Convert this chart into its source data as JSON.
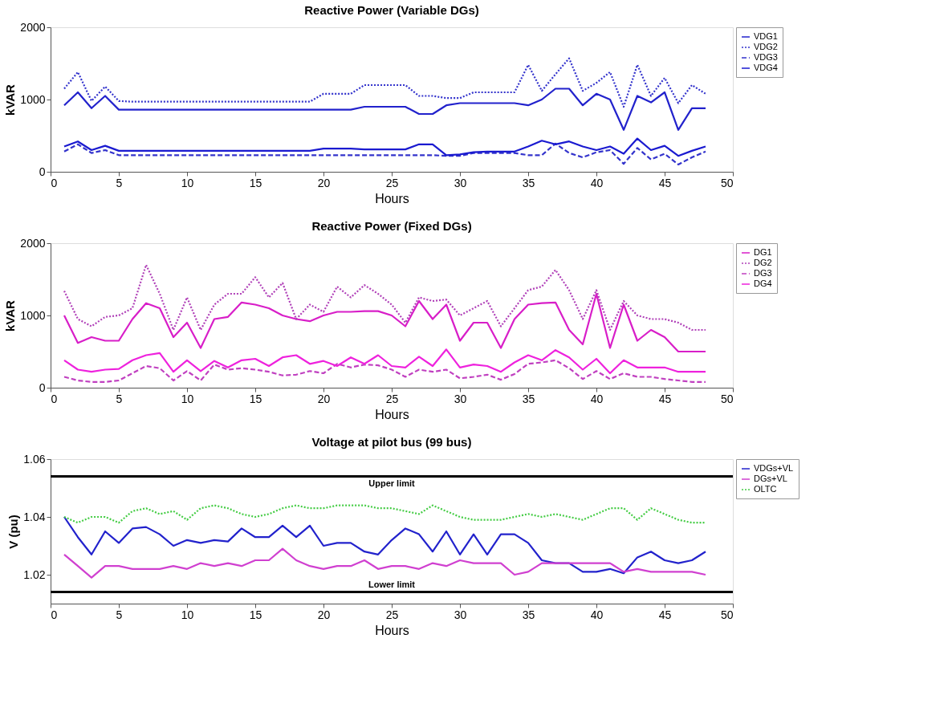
{
  "chart_data": [
    {
      "type": "line",
      "title": "Reactive Power (Variable DGs)",
      "xlabel": "Hours",
      "ylabel": "kVAR",
      "xlim": [
        0,
        50
      ],
      "xticks": [
        0,
        5,
        10,
        15,
        20,
        25,
        30,
        35,
        40,
        45,
        50
      ],
      "ylim": [
        0,
        2000
      ],
      "yticks": [
        0,
        1000,
        2000
      ],
      "grid": false,
      "legend": "top right",
      "marker": "none",
      "x": [
        1,
        2,
        3,
        4,
        5,
        6,
        7,
        8,
        9,
        10,
        11,
        12,
        13,
        14,
        15,
        16,
        17,
        18,
        19,
        20,
        21,
        22,
        23,
        24,
        25,
        26,
        27,
        28,
        29,
        30,
        31,
        32,
        33,
        34,
        35,
        36,
        37,
        38,
        39,
        40,
        41,
        42,
        43,
        44,
        45,
        46,
        47,
        48
      ],
      "series": [
        {
          "name": "VDG1",
          "color": "#2222cc",
          "line_style": "solid",
          "values": [
            920,
            1100,
            880,
            1050,
            860,
            860,
            860,
            860,
            860,
            860,
            860,
            860,
            860,
            860,
            860,
            860,
            860,
            860,
            860,
            860,
            860,
            860,
            900,
            900,
            900,
            900,
            800,
            800,
            920,
            950,
            950,
            950,
            950,
            950,
            920,
            1000,
            1150,
            1150,
            920,
            1080,
            1000,
            580,
            1050,
            960,
            1100,
            580,
            880,
            880
          ]
        },
        {
          "name": "VDG2",
          "color": "#3333cc",
          "line_style": "dotted",
          "values": [
            1150,
            1380,
            980,
            1180,
            980,
            970,
            970,
            970,
            970,
            970,
            970,
            970,
            970,
            970,
            970,
            970,
            970,
            970,
            970,
            1080,
            1080,
            1080,
            1200,
            1200,
            1200,
            1200,
            1050,
            1050,
            1020,
            1020,
            1100,
            1100,
            1100,
            1100,
            1480,
            1120,
            1350,
            1570,
            1120,
            1230,
            1380,
            900,
            1480,
            1050,
            1300,
            950,
            1200,
            1080
          ]
        },
        {
          "name": "VDG3",
          "color": "#3333cc",
          "line_style": "dashed",
          "values": [
            280,
            380,
            260,
            300,
            230,
            230,
            230,
            230,
            230,
            230,
            230,
            230,
            230,
            230,
            230,
            230,
            230,
            230,
            230,
            230,
            230,
            230,
            230,
            230,
            230,
            230,
            230,
            230,
            220,
            220,
            260,
            260,
            260,
            260,
            230,
            230,
            390,
            260,
            200,
            270,
            300,
            110,
            330,
            170,
            250,
            100,
            200,
            280
          ]
        },
        {
          "name": "VDG4",
          "color": "#1a1ad0",
          "line_style": "solid",
          "values": [
            350,
            420,
            300,
            360,
            290,
            290,
            290,
            290,
            290,
            290,
            290,
            290,
            290,
            290,
            290,
            290,
            290,
            290,
            290,
            320,
            320,
            320,
            310,
            310,
            310,
            310,
            380,
            380,
            230,
            240,
            270,
            280,
            280,
            280,
            350,
            430,
            380,
            420,
            350,
            300,
            350,
            250,
            460,
            300,
            360,
            220,
            290,
            350
          ]
        }
      ]
    },
    {
      "type": "line",
      "title": "Reactive Power (Fixed DGs)",
      "xlabel": "Hours",
      "ylabel": "kVAR",
      "xlim": [
        0,
        50
      ],
      "xticks": [
        0,
        5,
        10,
        15,
        20,
        25,
        30,
        35,
        40,
        45,
        50
      ],
      "ylim": [
        0,
        2000
      ],
      "yticks": [
        0,
        1000,
        2000
      ],
      "grid": false,
      "legend": "top right",
      "marker": "none",
      "x": [
        1,
        2,
        3,
        4,
        5,
        6,
        7,
        8,
        9,
        10,
        11,
        12,
        13,
        14,
        15,
        16,
        17,
        18,
        19,
        20,
        21,
        22,
        23,
        24,
        25,
        26,
        27,
        28,
        29,
        30,
        31,
        32,
        33,
        34,
        35,
        36,
        37,
        38,
        39,
        40,
        41,
        42,
        43,
        44,
        45,
        46,
        47,
        48
      ],
      "series": [
        {
          "name": "DG1",
          "color": "#d81ec8",
          "line_style": "solid",
          "values": [
            1000,
            620,
            700,
            650,
            650,
            950,
            1170,
            1100,
            700,
            900,
            550,
            950,
            980,
            1180,
            1150,
            1100,
            1000,
            950,
            920,
            1000,
            1050,
            1050,
            1060,
            1060,
            1000,
            850,
            1200,
            950,
            1150,
            650,
            900,
            900,
            550,
            950,
            1150,
            1170,
            1180,
            800,
            600,
            1300,
            550,
            1150,
            650,
            800,
            700,
            500,
            500,
            500
          ]
        },
        {
          "name": "DG2",
          "color": "#b040b8",
          "line_style": "dotted",
          "values": [
            1340,
            950,
            850,
            980,
            1000,
            1100,
            1700,
            1300,
            800,
            1250,
            800,
            1150,
            1300,
            1300,
            1530,
            1250,
            1450,
            950,
            1150,
            1050,
            1400,
            1250,
            1420,
            1300,
            1150,
            900,
            1250,
            1200,
            1220,
            1000,
            1100,
            1200,
            850,
            1100,
            1350,
            1400,
            1630,
            1350,
            950,
            1350,
            800,
            1200,
            1000,
            950,
            950,
            900,
            800,
            800
          ]
        },
        {
          "name": "DG3",
          "color": "#c040c0",
          "line_style": "dashed",
          "values": [
            150,
            100,
            80,
            80,
            100,
            200,
            300,
            270,
            100,
            230,
            100,
            320,
            250,
            270,
            250,
            220,
            170,
            180,
            230,
            200,
            330,
            280,
            320,
            310,
            250,
            150,
            250,
            220,
            250,
            130,
            150,
            180,
            110,
            190,
            330,
            350,
            380,
            270,
            120,
            230,
            120,
            200,
            150,
            150,
            120,
            100,
            80,
            80
          ]
        },
        {
          "name": "DG4",
          "color": "#ee22dd",
          "line_style": "solid",
          "values": [
            380,
            250,
            220,
            250,
            260,
            380,
            450,
            480,
            220,
            380,
            230,
            370,
            280,
            380,
            400,
            300,
            420,
            450,
            330,
            370,
            300,
            420,
            330,
            450,
            300,
            280,
            430,
            300,
            530,
            280,
            320,
            300,
            220,
            350,
            450,
            380,
            520,
            420,
            250,
            400,
            200,
            380,
            280,
            280,
            280,
            220,
            220,
            220
          ]
        }
      ]
    },
    {
      "type": "line",
      "title": "Voltage at pilot bus (99 bus)",
      "xlabel": "Hours",
      "ylabel": "V (pu)",
      "xlim": [
        0,
        50
      ],
      "xticks": [
        0,
        5,
        10,
        15,
        20,
        25,
        30,
        35,
        40,
        45,
        50
      ],
      "ylim": [
        1.01,
        1.06
      ],
      "yticks": [
        1.02,
        1.04,
        1.06
      ],
      "grid": false,
      "legend": "top right",
      "marker": "none",
      "x": [
        1,
        2,
        3,
        4,
        5,
        6,
        7,
        8,
        9,
        10,
        11,
        12,
        13,
        14,
        15,
        16,
        17,
        18,
        19,
        20,
        21,
        22,
        23,
        24,
        25,
        26,
        27,
        28,
        29,
        30,
        31,
        32,
        33,
        34,
        35,
        36,
        37,
        38,
        39,
        40,
        41,
        42,
        43,
        44,
        45,
        46,
        47,
        48
      ],
      "ref_lines": [
        {
          "axis": "y",
          "value": 1.054,
          "label": "Upper limit",
          "color": "#000000"
        },
        {
          "axis": "y",
          "value": 1.014,
          "label": "Lower limit",
          "color": "#000000"
        }
      ],
      "series": [
        {
          "name": "VDGs+VL",
          "color": "#2222cc",
          "line_style": "solid",
          "values": [
            1.04,
            1.033,
            1.027,
            1.035,
            1.031,
            1.036,
            1.0365,
            1.034,
            1.03,
            1.032,
            1.031,
            1.032,
            1.0315,
            1.036,
            1.033,
            1.033,
            1.037,
            1.033,
            1.037,
            1.03,
            1.031,
            1.031,
            1.028,
            1.027,
            1.032,
            1.036,
            1.034,
            1.028,
            1.035,
            1.027,
            1.034,
            1.027,
            1.034,
            1.034,
            1.031,
            1.025,
            1.024,
            1.024,
            1.021,
            1.021,
            1.022,
            1.0205,
            1.026,
            1.028,
            1.025,
            1.024,
            1.025,
            1.028
          ]
        },
        {
          "name": "DGs+VL",
          "color": "#d040d0",
          "line_style": "solid",
          "values": [
            1.027,
            1.023,
            1.019,
            1.023,
            1.023,
            1.022,
            1.022,
            1.022,
            1.023,
            1.022,
            1.024,
            1.023,
            1.024,
            1.023,
            1.025,
            1.025,
            1.029,
            1.025,
            1.023,
            1.022,
            1.023,
            1.023,
            1.025,
            1.022,
            1.023,
            1.023,
            1.022,
            1.024,
            1.023,
            1.025,
            1.024,
            1.024,
            1.024,
            1.02,
            1.021,
            1.024,
            1.024,
            1.024,
            1.024,
            1.024,
            1.024,
            1.021,
            1.022,
            1.021,
            1.021,
            1.021,
            1.021,
            1.02
          ]
        },
        {
          "name": "OLTC",
          "color": "#44cc44",
          "line_style": "dotted",
          "values": [
            1.04,
            1.038,
            1.04,
            1.04,
            1.038,
            1.042,
            1.043,
            1.041,
            1.042,
            1.039,
            1.043,
            1.044,
            1.043,
            1.041,
            1.04,
            1.041,
            1.043,
            1.044,
            1.043,
            1.043,
            1.044,
            1.044,
            1.044,
            1.043,
            1.043,
            1.042,
            1.041,
            1.044,
            1.042,
            1.04,
            1.039,
            1.039,
            1.039,
            1.04,
            1.041,
            1.04,
            1.041,
            1.04,
            1.039,
            1.041,
            1.043,
            1.043,
            1.039,
            1.043,
            1.041,
            1.039,
            1.038,
            1.038
          ]
        }
      ]
    }
  ]
}
